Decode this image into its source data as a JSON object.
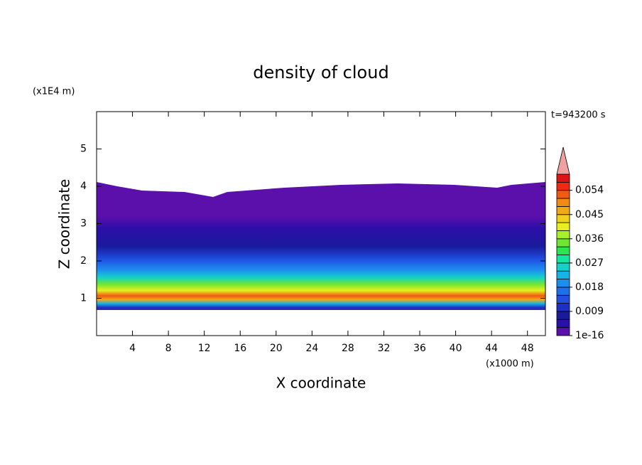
{
  "chart_data": {
    "type": "contour",
    "title": "density of cloud",
    "xlabel": "X coordinate",
    "ylabel": "Z coordinate",
    "x_unit": "(x1000 m)",
    "y_unit": "(x1E4 m)",
    "time_label": "t=943200 s",
    "xlim": [
      0,
      50
    ],
    "xticks": [
      4,
      8,
      12,
      16,
      20,
      24,
      28,
      32,
      36,
      40,
      44,
      48
    ],
    "ylim": [
      0,
      6
    ],
    "yticks": [
      1,
      2,
      3,
      4,
      5
    ],
    "clim": [
      1e-16,
      0.06
    ],
    "colorbar_ticks": [
      1e-16,
      0.009,
      0.018,
      0.027,
      0.036,
      0.045,
      0.054
    ],
    "colorbar_colors": [
      "#5b0fab",
      "#2c0ea8",
      "#1a1a9c",
      "#1e2fc8",
      "#1f50e0",
      "#1e6ef0",
      "#1e8cf0",
      "#14b4e6",
      "#14d2c8",
      "#14e6a0",
      "#28e650",
      "#6ee632",
      "#aaf028",
      "#e6f01e",
      "#f0d21e",
      "#f0aa14",
      "#f08c14",
      "#f05a14",
      "#f02814",
      "#dc1414"
    ],
    "extend_color": "#f0a0a0"
  }
}
